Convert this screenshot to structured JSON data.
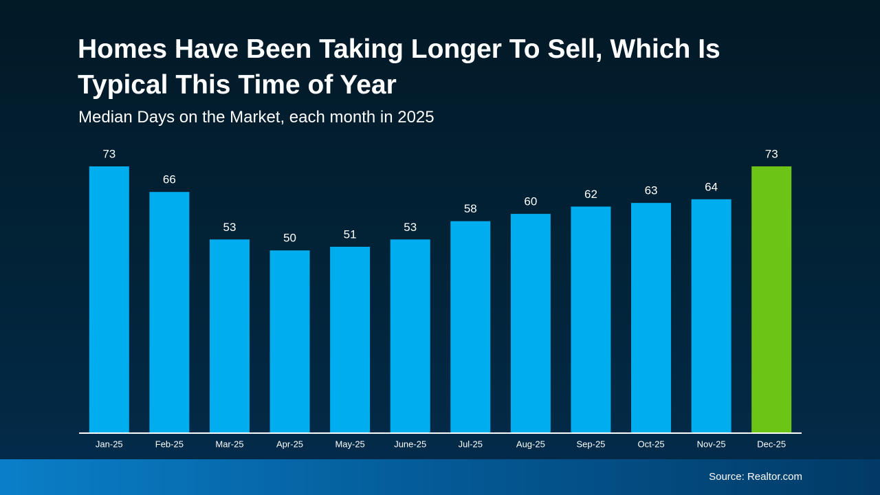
{
  "chart_data": {
    "type": "bar",
    "title": "Homes Have Been Taking Longer To Sell, Which Is Typical This Time of Year",
    "subtitle": "Median Days on the Market, each month in 2025",
    "categories": [
      "Jan-25",
      "Feb-25",
      "Mar-25",
      "Apr-25",
      "May-25",
      "June-25",
      "Jul-25",
      "Aug-25",
      "Sep-25",
      "Oct-25",
      "Nov-25",
      "Dec-25"
    ],
    "values": [
      73,
      66,
      53,
      50,
      51,
      53,
      58,
      60,
      62,
      63,
      64,
      73
    ],
    "colors": [
      "#00aeef",
      "#00aeef",
      "#00aeef",
      "#00aeef",
      "#00aeef",
      "#00aeef",
      "#00aeef",
      "#00aeef",
      "#00aeef",
      "#00aeef",
      "#00aeef",
      "#6cc417"
    ],
    "source": "Source: Realtor.com"
  }
}
